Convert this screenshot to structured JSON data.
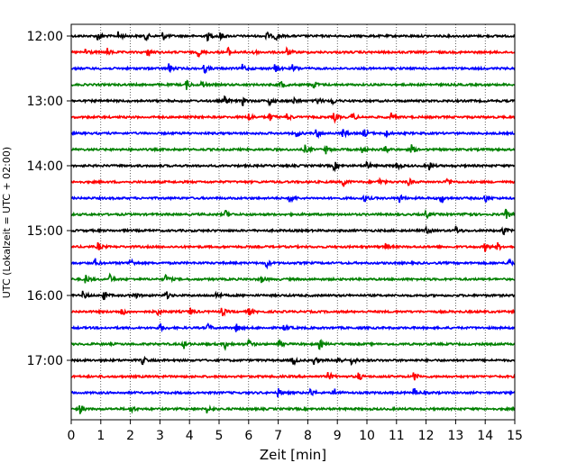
{
  "chart_data": {
    "type": "line",
    "xlabel": "Zeit  [min]",
    "ylabel": "UTC (Lokalzeit = UTC + 02:00)",
    "xlim": [
      0,
      15
    ],
    "x_ticks": [
      0,
      1,
      2,
      3,
      4,
      5,
      6,
      7,
      8,
      9,
      10,
      11,
      12,
      13,
      14,
      15
    ],
    "x_tick_labels": [
      "0",
      "1",
      "2",
      "3",
      "4",
      "5",
      "6",
      "7",
      "8",
      "9",
      "10",
      "11",
      "12",
      "13",
      "14",
      "15"
    ],
    "y_tick_labels": [
      "12:00",
      "13:00",
      "14:00",
      "15:00",
      "16:00",
      "17:00"
    ],
    "trace_start": "12:00",
    "trace_interval_minutes": 15,
    "trace_count": 24,
    "trace_colors": [
      "#000000",
      "#ff0000",
      "#0000ff",
      "#008000"
    ],
    "vertical_grid": "dotted",
    "legend": "none",
    "events": [
      {
        "trace": 0,
        "minutes": [
          0.9,
          1.6,
          2.5,
          3.1,
          4.6,
          5.0,
          6.6,
          6.9
        ]
      },
      {
        "trace": 1,
        "minutes": [
          0.5,
          1.2,
          2.6,
          4.3,
          5.3,
          6.1,
          7.3
        ]
      },
      {
        "trace": 2,
        "minutes": [
          3.3,
          4.5,
          5.8,
          6.9,
          7.5
        ]
      },
      {
        "trace": 3,
        "minutes": [
          3.9,
          4.4,
          7.1,
          8.2
        ]
      },
      {
        "trace": 4,
        "minutes": [
          5.2,
          5.8,
          6.7,
          7.5,
          8.3,
          8.8
        ]
      },
      {
        "trace": 5,
        "minutes": [
          6.0,
          6.7,
          7.3,
          8.9,
          9.5,
          10.8
        ]
      },
      {
        "trace": 6,
        "minutes": [
          7.6,
          8.3,
          9.2,
          9.9,
          10.6
        ]
      },
      {
        "trace": 7,
        "minutes": [
          7.9,
          8.6,
          9.8,
          10.6,
          11.5
        ]
      },
      {
        "trace": 8,
        "minutes": [
          8.9,
          10.0,
          11.0,
          12.1
        ]
      },
      {
        "trace": 9,
        "minutes": [
          9.2,
          10.4,
          11.4,
          12.7
        ]
      },
      {
        "trace": 10,
        "minutes": [
          7.4,
          9.9,
          11.1,
          12.5,
          14.0
        ]
      },
      {
        "trace": 11,
        "minutes": [
          5.2,
          12.0,
          13.3,
          14.7
        ]
      },
      {
        "trace": 12,
        "minutes": [
          12.0,
          13.0,
          14.6
        ]
      },
      {
        "trace": 13,
        "minutes": [
          0.9,
          10.6,
          14.0,
          14.4
        ]
      },
      {
        "trace": 14,
        "minutes": [
          0.8,
          2.0,
          6.6,
          14.8
        ]
      },
      {
        "trace": 15,
        "minutes": [
          0.5,
          1.3,
          3.2,
          6.4
        ]
      },
      {
        "trace": 16,
        "minutes": [
          0.4,
          1.1,
          2.1,
          3.2,
          4.9
        ]
      },
      {
        "trace": 17,
        "minutes": [
          1.7,
          2.9,
          4.0,
          5.1,
          6.0
        ]
      },
      {
        "trace": 18,
        "minutes": [
          3.0,
          4.6,
          5.6,
          7.2
        ]
      },
      {
        "trace": 19,
        "minutes": [
          3.8,
          5.2,
          6.0,
          7.0,
          8.4
        ]
      },
      {
        "trace": 20,
        "minutes": [
          2.4,
          7.5,
          8.2,
          9.0,
          9.5
        ]
      },
      {
        "trace": 21,
        "minutes": [
          8.7,
          9.7,
          11.6
        ]
      },
      {
        "trace": 22,
        "minutes": [
          7.0,
          8.1,
          8.9,
          11.6
        ]
      },
      {
        "trace": 23,
        "minutes": [
          0.3,
          2.0,
          4.6
        ]
      }
    ]
  }
}
